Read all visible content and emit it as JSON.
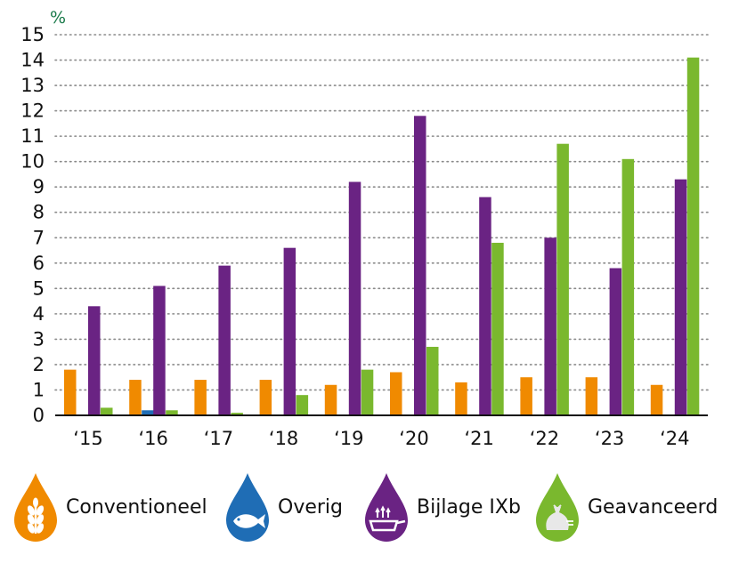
{
  "chart_data": {
    "type": "bar",
    "unit_label": "%",
    "ylim": [
      0,
      15
    ],
    "yticks": [
      0,
      1,
      2,
      3,
      4,
      5,
      6,
      7,
      8,
      9,
      10,
      11,
      12,
      13,
      14,
      15
    ],
    "grid": "dotted-horizontal",
    "categories": [
      "‘15",
      "‘16",
      "‘17",
      "‘18",
      "‘19",
      "‘20",
      "‘21",
      "‘22",
      "‘23",
      "‘24"
    ],
    "series": [
      {
        "name": "Conventioneel",
        "color": "#f08a00",
        "values": [
          1.8,
          1.4,
          1.4,
          1.4,
          1.2,
          1.7,
          1.3,
          1.5,
          1.5,
          1.2
        ]
      },
      {
        "name": "Overig",
        "color": "#1f6db5",
        "values": [
          0,
          0.2,
          0,
          0,
          0,
          0,
          0,
          0,
          0,
          0
        ]
      },
      {
        "name": "Bijlage IXb",
        "color": "#6a2383",
        "values": [
          4.3,
          5.1,
          5.9,
          6.6,
          9.2,
          11.8,
          8.6,
          7.0,
          5.8,
          9.3
        ]
      },
      {
        "name": "Geavanceerd",
        "color": "#7ab82e",
        "values": [
          0.3,
          0.2,
          0.1,
          0.8,
          1.8,
          2.7,
          6.8,
          10.7,
          10.1,
          14.1
        ]
      }
    ]
  },
  "legend": [
    {
      "label": "Conventioneel",
      "icon": "wheat-icon",
      "color": "#f08a00"
    },
    {
      "label": "Overig",
      "icon": "fish-icon",
      "color": "#1f6db5"
    },
    {
      "label": "Bijlage IXb",
      "icon": "frying-pan-icon",
      "color": "#6a2383"
    },
    {
      "label": "Geavanceerd",
      "icon": "waste-bag-icon",
      "color": "#7ab82e"
    }
  ]
}
